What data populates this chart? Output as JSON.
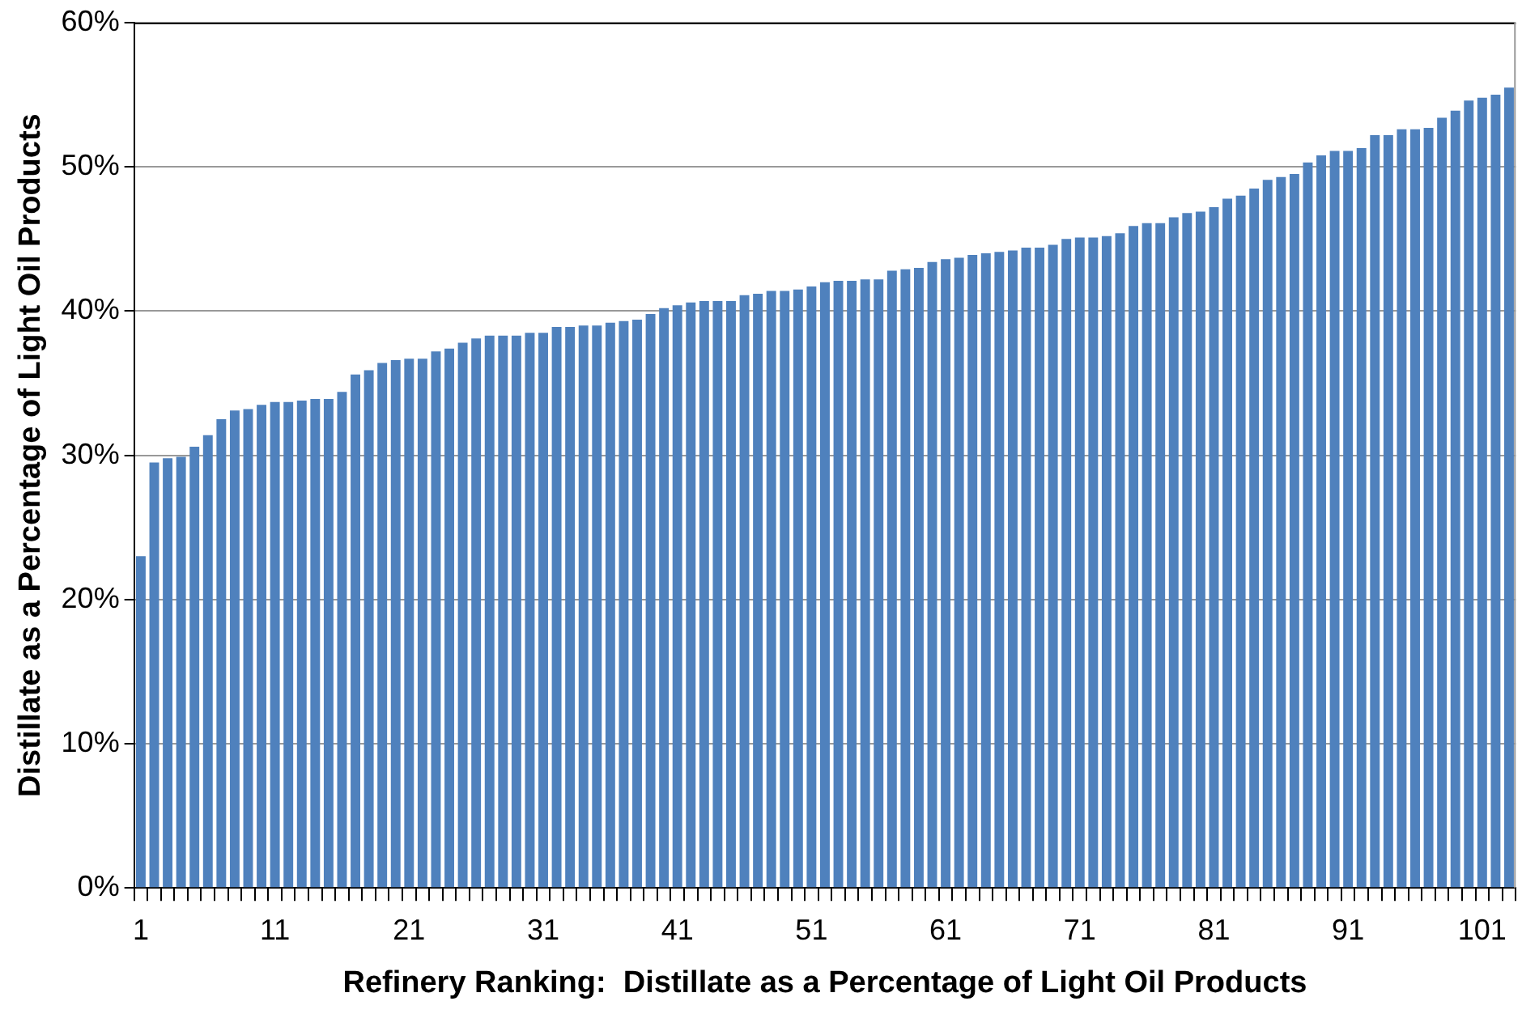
{
  "chart_data": {
    "type": "bar",
    "xlabel": "Refinery Ranking:  Distillate as a Percentage of Light Oil Products",
    "ylabel": "Distillate as a Percentage of Light Oil Products",
    "categories": [
      "1",
      null,
      null,
      null,
      null,
      null,
      null,
      null,
      null,
      null,
      "11",
      null,
      null,
      null,
      null,
      null,
      null,
      null,
      null,
      null,
      "21",
      null,
      null,
      null,
      null,
      null,
      null,
      null,
      null,
      null,
      "31",
      null,
      null,
      null,
      null,
      null,
      null,
      null,
      null,
      null,
      "41",
      null,
      null,
      null,
      null,
      null,
      null,
      null,
      null,
      null,
      "51",
      null,
      null,
      null,
      null,
      null,
      null,
      null,
      null,
      null,
      "61",
      null,
      null,
      null,
      null,
      null,
      null,
      null,
      null,
      null,
      "71",
      null,
      null,
      null,
      null,
      null,
      null,
      null,
      null,
      null,
      "81",
      null,
      null,
      null,
      null,
      null,
      null,
      null,
      null,
      null,
      "91",
      null,
      null,
      null,
      null,
      null,
      null,
      null,
      null,
      null,
      "101",
      null,
      null
    ],
    "values": [
      23.0,
      29.5,
      29.8,
      29.9,
      30.6,
      31.4,
      32.5,
      33.1,
      33.2,
      33.5,
      33.7,
      33.7,
      33.8,
      33.9,
      33.9,
      34.4,
      35.6,
      35.9,
      36.4,
      36.6,
      36.7,
      36.7,
      37.2,
      37.4,
      37.8,
      38.1,
      38.3,
      38.3,
      38.3,
      38.5,
      38.5,
      38.9,
      38.9,
      39.0,
      39.0,
      39.2,
      39.3,
      39.4,
      39.8,
      40.2,
      40.4,
      40.6,
      40.7,
      40.7,
      40.7,
      41.1,
      41.2,
      41.4,
      41.4,
      41.5,
      41.7,
      42.0,
      42.1,
      42.1,
      42.2,
      42.2,
      42.8,
      42.9,
      43.0,
      43.4,
      43.6,
      43.7,
      43.9,
      44.0,
      44.1,
      44.2,
      44.4,
      44.4,
      44.6,
      45.0,
      45.1,
      45.1,
      45.2,
      45.4,
      45.9,
      46.1,
      46.1,
      46.5,
      46.8,
      46.9,
      47.2,
      47.8,
      48.0,
      48.5,
      49.1,
      49.3,
      49.5,
      50.3,
      50.8,
      51.1,
      51.1,
      51.3,
      52.2,
      52.2,
      52.6,
      52.6,
      52.7,
      53.4,
      53.9,
      54.6,
      54.8,
      55.0,
      55.5
    ],
    "color": "#4f81bd",
    "ylim": [
      0,
      60
    ],
    "yticks": [
      {
        "value": 0,
        "label": "0%"
      },
      {
        "value": 10,
        "label": "10%"
      },
      {
        "value": 20,
        "label": "20%"
      },
      {
        "value": 30,
        "label": "30%"
      },
      {
        "value": 40,
        "label": "40%"
      },
      {
        "value": 50,
        "label": "50%"
      },
      {
        "value": 60,
        "label": "60%"
      }
    ],
    "grid": "y"
  }
}
